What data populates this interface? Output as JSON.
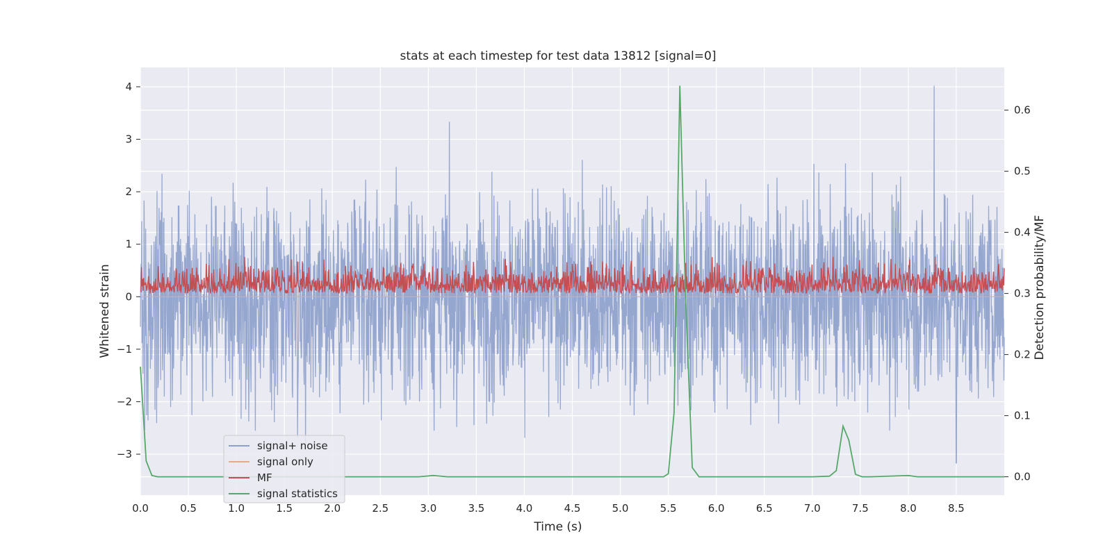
{
  "chart_data": {
    "type": "line",
    "title": "stats at each timestep for test data 13812 [signal=0]",
    "xlabel": "Time (s)",
    "ylabel_left": "Whitened strain",
    "ylabel_right": "Detection probability/MF",
    "xlim": [
      0.0,
      9.0
    ],
    "ylim_left": [
      -3.78,
      4.37
    ],
    "ylim_right": [
      -0.03,
      0.67
    ],
    "xticks": [
      "0.0",
      "0.5",
      "1.0",
      "1.5",
      "2.0",
      "2.5",
      "3.0",
      "3.5",
      "4.0",
      "4.5",
      "5.0",
      "5.5",
      "6.0",
      "6.5",
      "7.0",
      "7.5",
      "8.0",
      "8.5"
    ],
    "xtick_values": [
      0.0,
      0.5,
      1.0,
      1.5,
      2.0,
      2.5,
      3.0,
      3.5,
      4.0,
      4.5,
      5.0,
      5.5,
      6.0,
      6.5,
      7.0,
      7.5,
      8.0,
      8.5
    ],
    "yticks_left": [
      "−3",
      "−2",
      "−1",
      "0",
      "1",
      "2",
      "3",
      "4"
    ],
    "ytick_values_left": [
      -3,
      -2,
      -1,
      0,
      1,
      2,
      3,
      4
    ],
    "yticks_right": [
      "0.0",
      "0.1",
      "0.2",
      "0.3",
      "0.4",
      "0.5",
      "0.6"
    ],
    "ytick_values_right": [
      0.0,
      0.1,
      0.2,
      0.3,
      0.4,
      0.5,
      0.6
    ],
    "grid": true,
    "legend_position": "lower-left",
    "colors": {
      "background": "#eaeaf2",
      "grid": "#ffffff",
      "signal_noise": "#8da0cb",
      "signal_only": "#e8a68e",
      "mf": "#c44e52",
      "stats": "#55a868"
    },
    "series": [
      {
        "name": "signal+ noise",
        "axis": "left",
        "noise_band": {
          "typical_range": [
            -2.0,
            2.3
          ],
          "peak_max": 4.02,
          "peak_max_x": 8.27,
          "peak_min": -3.17,
          "peak_min_x": 8.5,
          "approx_rms": 0.95
        }
      },
      {
        "name": "signal only",
        "axis": "left",
        "values_flat": 0.0
      },
      {
        "name": "MF",
        "axis": "right",
        "noise_band": {
          "baseline": 0.3,
          "typical_range": [
            0.3,
            0.37
          ],
          "peak": 0.39
        }
      },
      {
        "name": "signal statistics",
        "axis": "right",
        "x": [
          0.0,
          0.06,
          0.12,
          0.18,
          0.25,
          0.5,
          1.0,
          2.0,
          2.9,
          3.05,
          3.2,
          4.0,
          5.0,
          5.45,
          5.5,
          5.56,
          5.62,
          5.68,
          5.75,
          5.82,
          5.9,
          6.5,
          7.0,
          7.18,
          7.25,
          7.32,
          7.38,
          7.45,
          7.52,
          7.6,
          8.0,
          8.1,
          8.2,
          9.0
        ],
        "y": [
          0.18,
          0.026,
          0.002,
          0.0,
          0.0,
          0.0,
          0.0,
          0.0,
          0.0,
          0.002,
          0.0,
          0.0,
          0.0,
          0.0,
          0.005,
          0.105,
          0.64,
          0.29,
          0.015,
          0.0,
          0.0,
          0.0,
          0.0,
          0.001,
          0.01,
          0.083,
          0.06,
          0.004,
          0.0,
          0.0,
          0.002,
          0.0,
          0.0,
          0.0
        ]
      }
    ]
  },
  "legend": {
    "items": [
      {
        "label": "signal+ noise",
        "color": "#8da0cb"
      },
      {
        "label": "signal only",
        "color": "#e8a68e"
      },
      {
        "label": "MF",
        "color": "#c44e52"
      },
      {
        "label": "signal statistics",
        "color": "#55a868"
      }
    ]
  }
}
